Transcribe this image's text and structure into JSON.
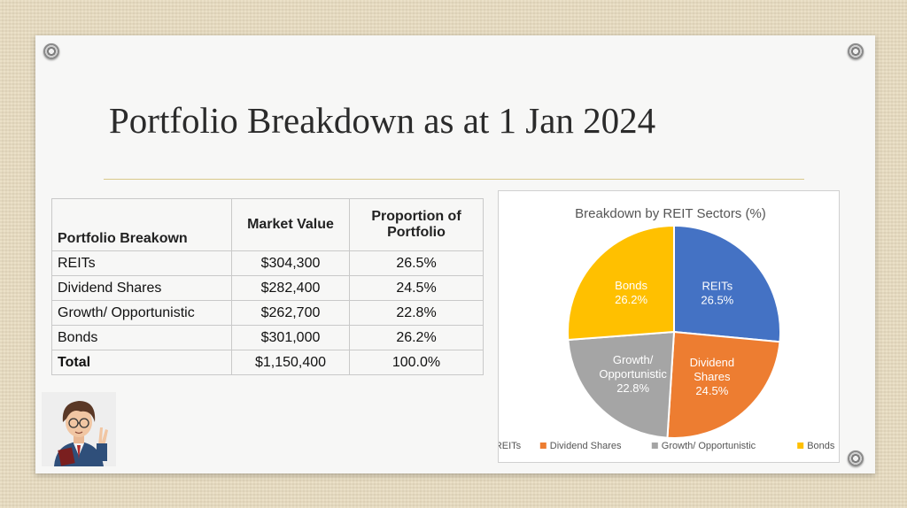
{
  "slide": {
    "title": "Portfolio Breakdown as at 1 Jan 2024"
  },
  "table": {
    "headers": [
      "Portfolio Breakown",
      "Market Value",
      "Proportion of Portfolio"
    ],
    "rows": [
      {
        "label": "REITs",
        "value": "$304,300",
        "pct": "26.5%"
      },
      {
        "label": "Dividend Shares",
        "value": "$282,400",
        "pct": "24.5%"
      },
      {
        "label": "Growth/ Opportunistic",
        "value": "$262,700",
        "pct": "22.8%"
      },
      {
        "label": "Bonds",
        "value": "$301,000",
        "pct": "26.2%"
      }
    ],
    "total": {
      "label": "Total",
      "value": "$1,150,400",
      "pct": "100.0%"
    }
  },
  "chart_data": {
    "type": "pie",
    "title": "Breakdown by REIT Sectors (%)",
    "categories": [
      "REITs",
      "Dividend Shares",
      "Growth/ Opportunistic",
      "Bonds"
    ],
    "slice_labels": [
      [
        "REITs",
        "26.5%"
      ],
      [
        "Dividend",
        "Shares",
        "24.5%"
      ],
      [
        "Growth/",
        "Opportunistic",
        "22.8%"
      ],
      [
        "Bonds",
        "26.2%"
      ]
    ],
    "values": [
      26.5,
      24.5,
      22.8,
      26.2
    ],
    "colors": [
      "#4472c4",
      "#ed7d31",
      "#a5a5a5",
      "#ffc000"
    ],
    "legend": "bottom"
  },
  "icons": {
    "pins": "pushpin-icon",
    "avatar": "cartoon-avatar-image"
  }
}
